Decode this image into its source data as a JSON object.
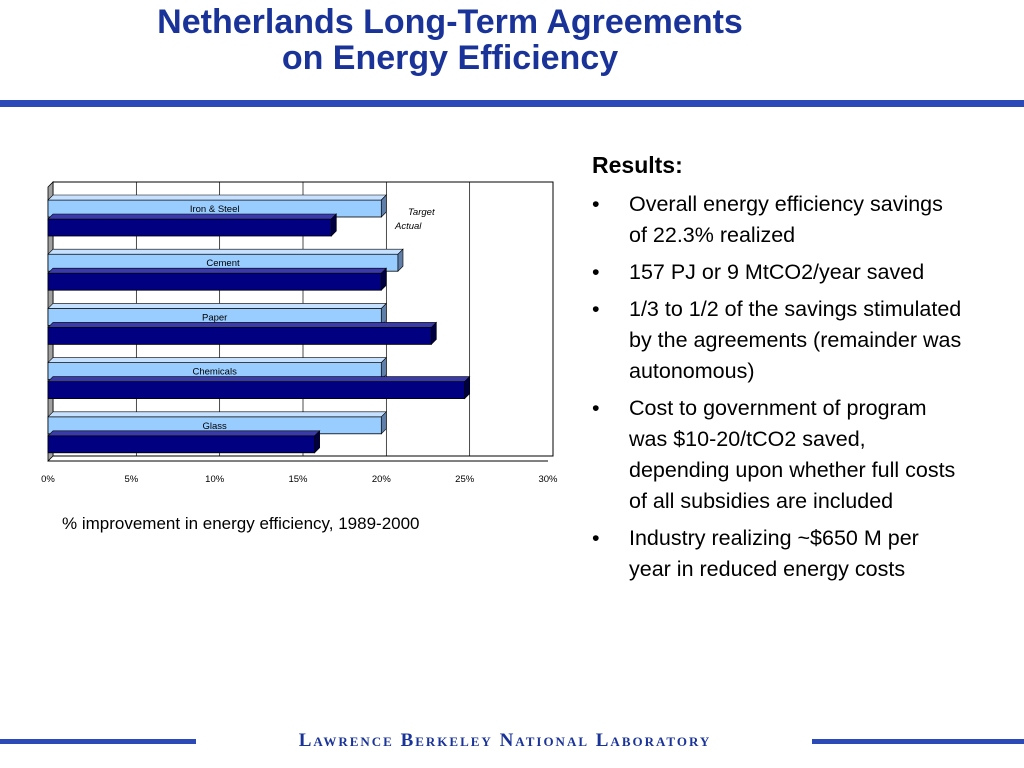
{
  "slide": {
    "title_line1": "Netherlands Long-Term Agreements",
    "title_line2": "on Energy Efficiency",
    "accent_color": "#1a3399"
  },
  "chart_data": {
    "type": "bar",
    "orientation": "horizontal",
    "categories": [
      "Iron & Steel",
      "Cement",
      "Paper",
      "Chemicals",
      "Glass"
    ],
    "series": [
      {
        "name": "Target",
        "values": [
          20,
          21,
          20,
          20,
          20
        ],
        "color": "#99ccff"
      },
      {
        "name": "Actual",
        "values": [
          17,
          20,
          23,
          25,
          16
        ],
        "color": "#000080"
      }
    ],
    "xticks": [
      "0%",
      "5%",
      "10%",
      "15%",
      "20%",
      "25%",
      "30%"
    ],
    "xlim": [
      0,
      30
    ],
    "xlabel": "% improvement in energy efficiency, 1989-2000",
    "grid": true,
    "legend": "top-right",
    "three_d": true
  },
  "results": {
    "heading": "Results:",
    "bullet_symbol": "•",
    "items": [
      "Overall energy efficiency savings of 22.3% realized",
      "157 PJ or 9 MtCO2/year saved",
      "1/3 to 1/2 of the savings stimulated by the agreements (remainder was autonomous)",
      "Cost to government of program was $10-20/tCO2 saved, depending upon whether full costs of all subsidies are included",
      "Industry realizing ~$650 M per year in reduced energy costs"
    ]
  },
  "footer": {
    "lab_name": "Lawrence Berkeley National Laboratory"
  }
}
